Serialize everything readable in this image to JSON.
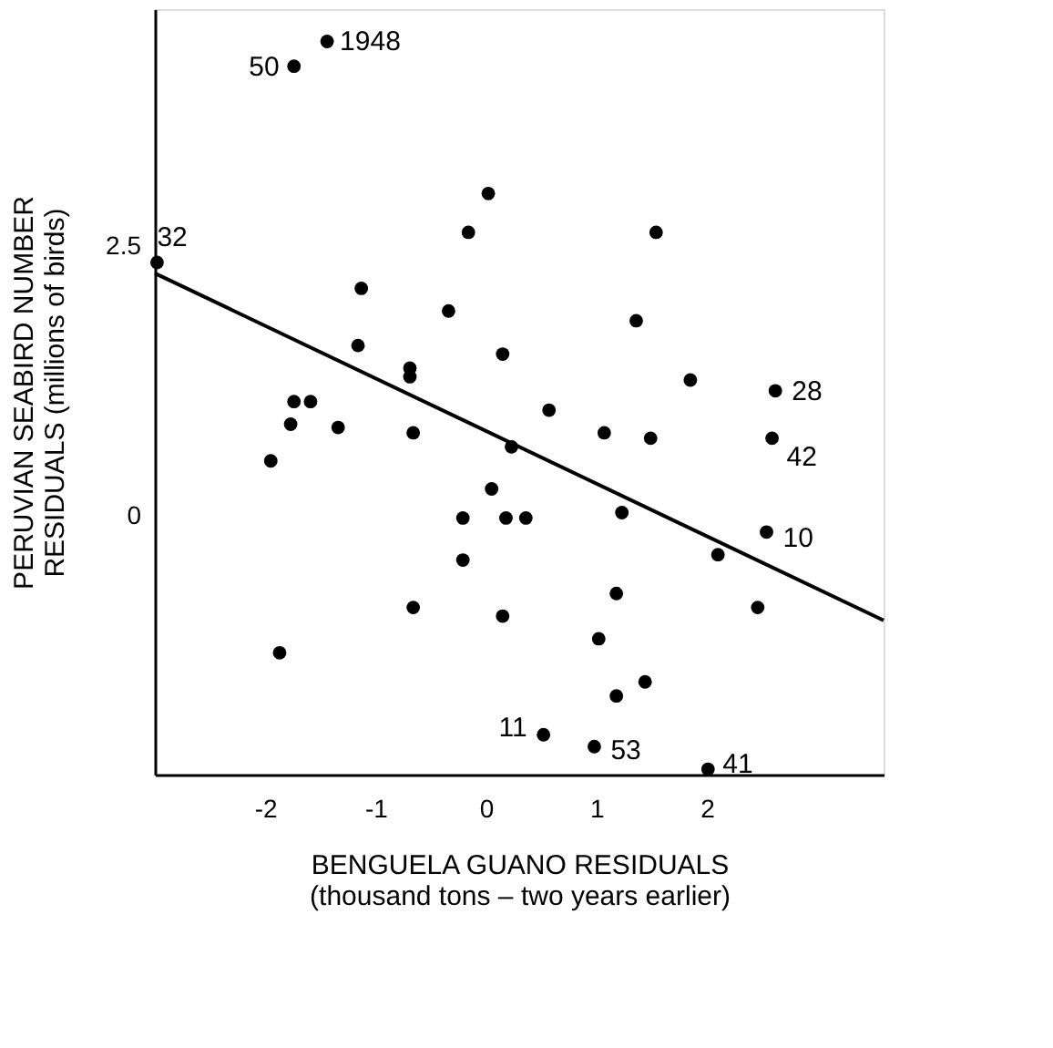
{
  "chart_data": {
    "type": "scatter",
    "xlabel": "BENGUELA GUANO RESIDUALS\n(thousand tons – two years earlier)",
    "ylabel": "PERUVIAN SEABIRD NUMBER\nRESIDUALS (millions of birds)",
    "xlim": [
      -3.0,
      3.6
    ],
    "ylim": [
      -2.4,
      4.7
    ],
    "xticks": [
      -2,
      -1,
      0,
      1,
      2
    ],
    "yticks": [
      0,
      2.5
    ],
    "grid": false,
    "series": [
      {
        "color": "#000000",
        "marker": "circle",
        "x": [
          -1.44,
          -1.74,
          -2.98,
          0.02,
          -0.16,
          1.54,
          -1.13,
          -0.34,
          1.36,
          -1.16,
          0.15,
          -0.69,
          -0.69,
          1.85,
          2.62,
          0.57,
          -1.74,
          -1.59,
          -1.77,
          -1.34,
          -0.66,
          1.07,
          1.49,
          2.59,
          0.23,
          -1.95,
          0.05,
          -0.21,
          0.18,
          0.36,
          1.23,
          2.54,
          2.1,
          -0.21,
          1.18,
          -0.66,
          0.15,
          2.46,
          -1.87,
          1.02,
          1.44,
          1.18,
          0.52,
          0.98,
          2.01
        ],
        "values": [
          4.4,
          4.17,
          2.35,
          2.99,
          2.63,
          2.63,
          2.11,
          1.9,
          1.81,
          1.58,
          1.5,
          1.37,
          1.29,
          1.26,
          1.16,
          0.98,
          1.06,
          1.06,
          0.85,
          0.82,
          0.77,
          0.77,
          0.72,
          0.72,
          0.64,
          0.51,
          0.25,
          -0.02,
          -0.02,
          -0.02,
          0.03,
          -0.15,
          -0.36,
          -0.41,
          -0.72,
          -0.85,
          -0.93,
          -0.85,
          -1.27,
          -1.14,
          -1.54,
          -1.67,
          -2.03,
          -2.14,
          -2.35
        ]
      },
      {
        "type": "line",
        "color": "#000000",
        "x": [
          -3.0,
          3.6
        ],
        "values": [
          2.25,
          -0.97
        ]
      }
    ],
    "annotations": [
      {
        "text": "1948",
        "x": -1.44,
        "y": 4.4
      },
      {
        "text": "50",
        "x": -1.74,
        "y": 4.17
      },
      {
        "text": "32",
        "x": -2.98,
        "y": 2.35
      },
      {
        "text": "28",
        "x": 2.62,
        "y": 1.16
      },
      {
        "text": "42",
        "x": 2.59,
        "y": 0.72
      },
      {
        "text": "10",
        "x": 2.54,
        "y": -0.15
      },
      {
        "text": "11",
        "x": 0.52,
        "y": -2.03
      },
      {
        "text": "53",
        "x": 0.98,
        "y": -2.14
      },
      {
        "text": "41",
        "x": 2.01,
        "y": -2.35
      }
    ]
  }
}
